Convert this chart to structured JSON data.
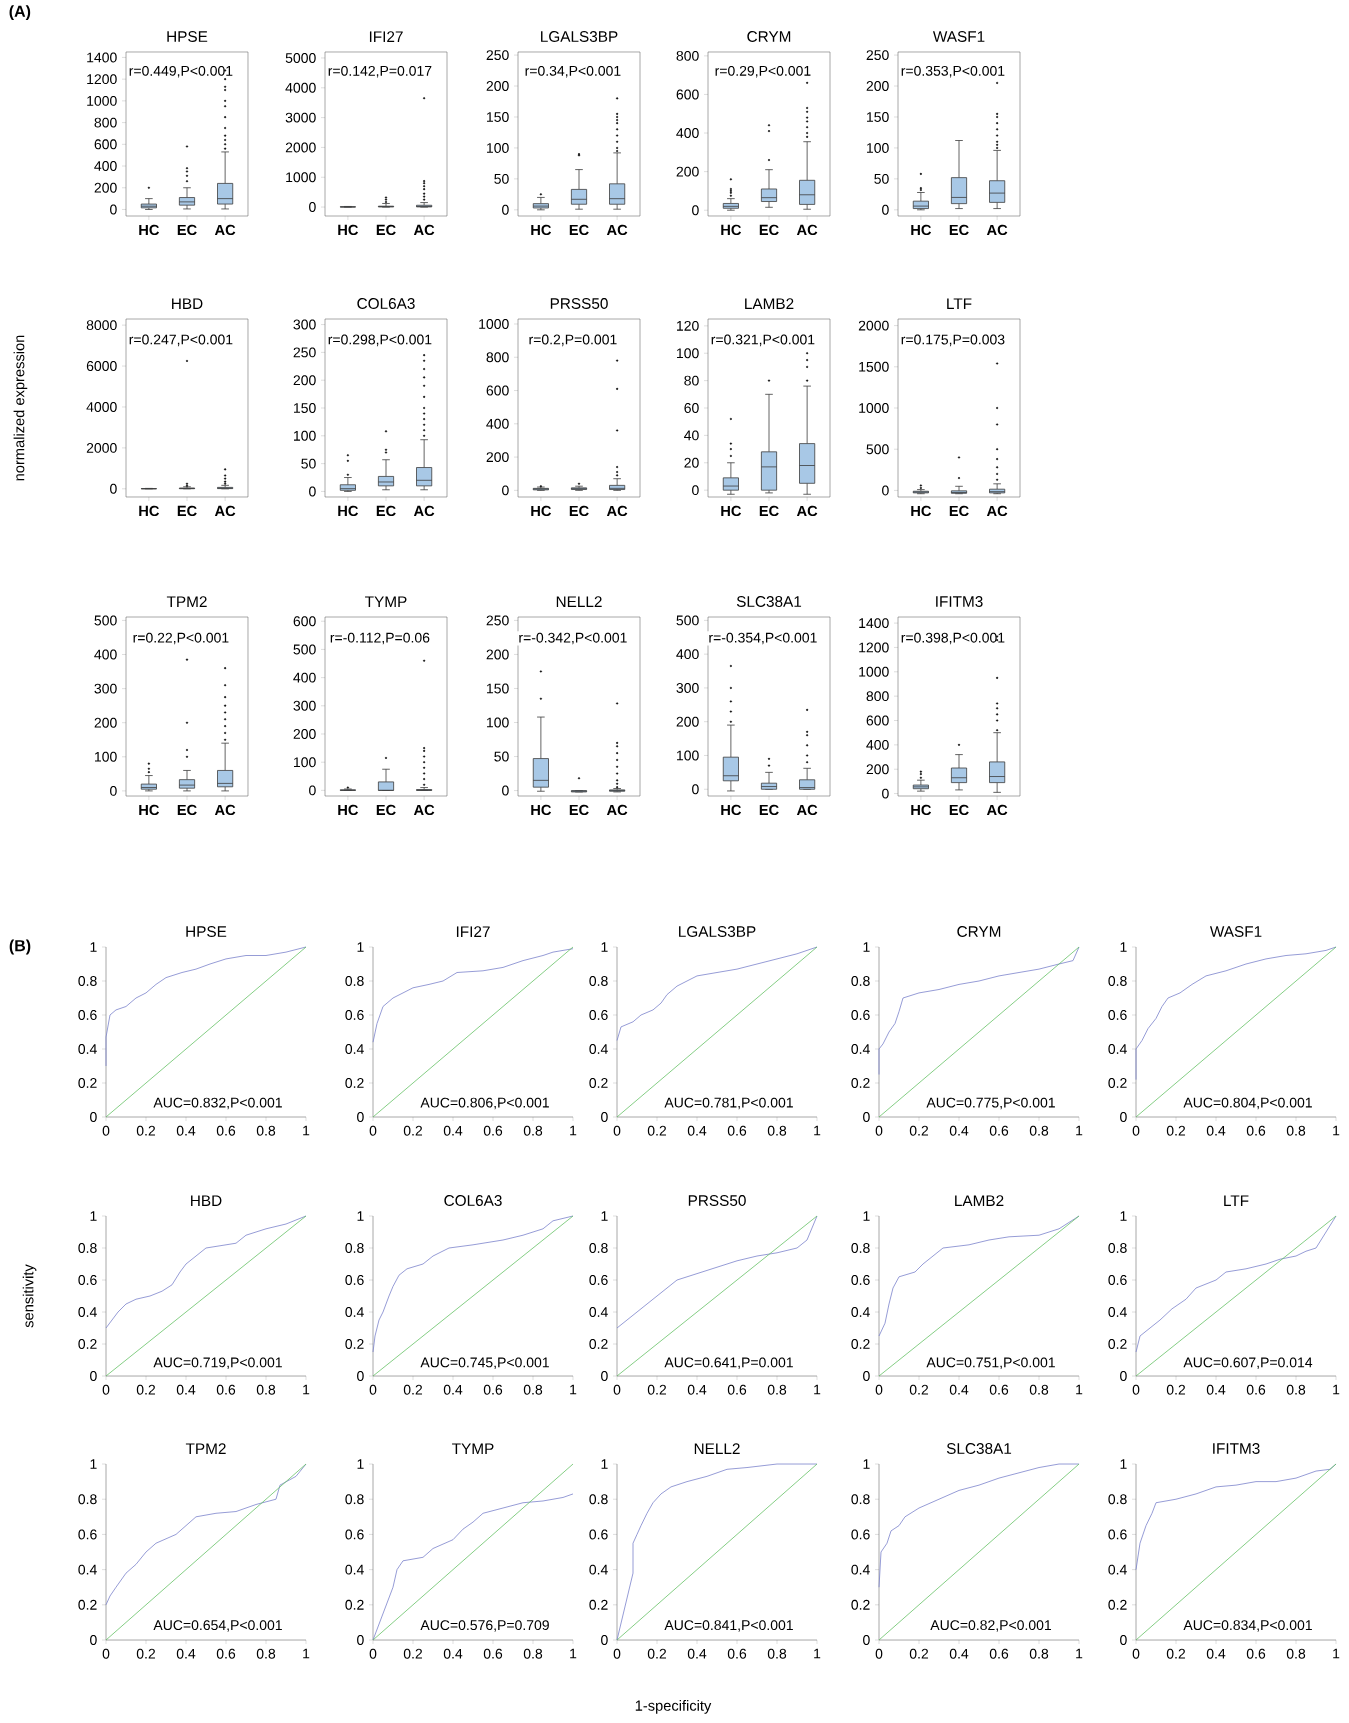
{
  "chart_data": [
    {
      "type": "box",
      "title": "HPSE",
      "categories": [
        "HC",
        "EC",
        "AC"
      ],
      "color": "#a8c8e6",
      "ylim": [
        -60,
        1450
      ],
      "yticks": [
        0,
        200,
        400,
        600,
        800,
        1000,
        1200,
        1400
      ],
      "annotations": [
        "r=0.449,P<0.001",
        "(A)"
      ],
      "boxes": [
        {
          "low": 0,
          "q1": 15,
          "median": 30,
          "q3": 50,
          "high": 100,
          "outliers": [
            200
          ]
        },
        {
          "low": 5,
          "q1": 40,
          "median": 70,
          "q3": 110,
          "high": 200,
          "outliers": [
            260,
            310,
            350,
            380,
            580
          ]
        },
        {
          "low": 5,
          "q1": 50,
          "median": 100,
          "q3": 240,
          "high": 530,
          "outliers": [
            560,
            600,
            640,
            680,
            750,
            850,
            950,
            1000,
            1100,
            1130,
            1200,
            1280
          ]
        }
      ]
    },
    {
      "type": "box",
      "title": "IFI27",
      "categories": [
        "HC",
        "EC",
        "AC"
      ],
      "color": "#a8c8e6",
      "ylim": [
        -300,
        5200
      ],
      "yticks": [
        0,
        1000,
        2000,
        3000,
        4000,
        5000
      ],
      "annotations": [
        "r=0.142,P=0.017"
      ],
      "boxes": [
        {
          "low": 0,
          "q1": 0,
          "median": 5,
          "q3": 10,
          "high": 20
        },
        {
          "low": 0,
          "q1": 5,
          "median": 15,
          "q3": 30,
          "high": 120,
          "outliers": [
            170,
            250,
            320
          ]
        },
        {
          "low": 0,
          "q1": 5,
          "median": 20,
          "q3": 60,
          "high": 150,
          "outliers": [
            250,
            350,
            450,
            600,
            700,
            800,
            870,
            3650
          ]
        }
      ]
    },
    {
      "type": "box",
      "title": "LGALS3BP",
      "categories": [
        "HC",
        "EC",
        "AC"
      ],
      "color": "#a8c8e6",
      "ylim": [
        -10,
        255
      ],
      "yticks": [
        0,
        50,
        100,
        150,
        200,
        250
      ],
      "annotations": [
        "r=0.34,P<0.001"
      ],
      "boxes": [
        {
          "low": 0,
          "q1": 3,
          "median": 6,
          "q3": 10,
          "high": 20,
          "outliers": [
            25
          ]
        },
        {
          "low": 1,
          "q1": 9,
          "median": 17,
          "q3": 33,
          "high": 65,
          "outliers": [
            88,
            90
          ]
        },
        {
          "low": 1,
          "q1": 9,
          "median": 18,
          "q3": 42,
          "high": 92,
          "outliers": [
            95,
            100,
            110,
            120,
            130,
            140,
            145,
            150,
            155,
            180
          ]
        }
      ]
    },
    {
      "type": "box",
      "title": "CRYM",
      "categories": [
        "HC",
        "EC",
        "AC"
      ],
      "color": "#a8c8e6",
      "ylim": [
        -30,
        820
      ],
      "yticks": [
        0,
        200,
        400,
        600,
        800
      ],
      "annotations": [
        "r=0.29,P<0.001"
      ],
      "boxes": [
        {
          "low": 0,
          "q1": 10,
          "median": 20,
          "q3": 35,
          "high": 60,
          "outliers": [
            75,
            90,
            100,
            110,
            160
          ]
        },
        {
          "low": 15,
          "q1": 45,
          "median": 65,
          "q3": 110,
          "high": 210,
          "outliers": [
            260,
            410,
            440
          ]
        },
        {
          "low": 5,
          "q1": 30,
          "median": 80,
          "q3": 155,
          "high": 355,
          "outliers": [
            380,
            400,
            430,
            460,
            480,
            510,
            530,
            660
          ]
        }
      ]
    },
    {
      "type": "box",
      "title": "WASF1",
      "categories": [
        "HC",
        "EC",
        "AC"
      ],
      "color": "#a8c8e6",
      "ylim": [
        -10,
        255
      ],
      "yticks": [
        0,
        50,
        100,
        150,
        200,
        250
      ],
      "annotations": [
        "r=0.353,P<0.001"
      ],
      "boxes": [
        {
          "low": 0,
          "q1": 2,
          "median": 6,
          "q3": 14,
          "high": 28,
          "outliers": [
            32,
            35,
            58
          ]
        },
        {
          "low": 2,
          "q1": 10,
          "median": 20,
          "q3": 52,
          "high": 112
        },
        {
          "low": 2,
          "q1": 12,
          "median": 27,
          "q3": 47,
          "high": 96,
          "outliers": [
            100,
            105,
            110,
            120,
            130,
            140,
            150,
            155,
            205
          ]
        }
      ]
    },
    {
      "type": "box",
      "title": "HBD",
      "categories": [
        "HC",
        "EC",
        "AC"
      ],
      "color": "#a8c8e6",
      "ylim": [
        -400,
        8300
      ],
      "yticks": [
        0,
        2000,
        4000,
        6000,
        8000
      ],
      "ylabel": "normalized expression",
      "annotations": [
        "r=0.247,P<0.001"
      ],
      "boxes": [
        {
          "low": 0,
          "q1": 0,
          "median": 5,
          "q3": 10,
          "high": 20
        },
        {
          "low": 0,
          "q1": 5,
          "median": 15,
          "q3": 40,
          "high": 100,
          "outliers": [
            150,
            250,
            6250
          ]
        },
        {
          "low": 0,
          "q1": 10,
          "median": 30,
          "q3": 70,
          "high": 170,
          "outliers": [
            250,
            350,
            500,
            650,
            950
          ]
        }
      ]
    },
    {
      "type": "box",
      "title": "COL6A3",
      "categories": [
        "HC",
        "EC",
        "AC"
      ],
      "color": "#a8c8e6",
      "ylim": [
        -10,
        310
      ],
      "yticks": [
        0,
        50,
        100,
        150,
        200,
        250,
        300
      ],
      "annotations": [
        "r=0.298,P<0.001"
      ],
      "boxes": [
        {
          "low": 0,
          "q1": 2,
          "median": 5,
          "q3": 12,
          "high": 25,
          "outliers": [
            30,
            55,
            65
          ]
        },
        {
          "low": 3,
          "q1": 10,
          "median": 17,
          "q3": 27,
          "high": 57,
          "outliers": [
            70,
            75,
            108
          ]
        },
        {
          "low": 3,
          "q1": 10,
          "median": 20,
          "q3": 43,
          "high": 93,
          "outliers": [
            100,
            110,
            120,
            130,
            140,
            150,
            170,
            190,
            205,
            220,
            235,
            245
          ]
        }
      ]
    },
    {
      "type": "box",
      "title": "PRSS50",
      "categories": [
        "HC",
        "EC",
        "AC"
      ],
      "color": "#a8c8e6",
      "ylim": [
        -40,
        1030
      ],
      "yticks": [
        0,
        200,
        400,
        600,
        800,
        1000
      ],
      "annotations": [
        "r=0.2,P=0.001"
      ],
      "boxes": [
        {
          "low": 0,
          "q1": 3,
          "median": 8,
          "q3": 12,
          "high": 20,
          "outliers": [
            25
          ]
        },
        {
          "low": 0,
          "q1": 5,
          "median": 10,
          "q3": 15,
          "high": 25,
          "outliers": [
            40
          ]
        },
        {
          "low": 0,
          "q1": 5,
          "median": 12,
          "q3": 30,
          "high": 70,
          "outliers": [
            90,
            110,
            140,
            360,
            610,
            780
          ]
        }
      ]
    },
    {
      "type": "box",
      "title": "LAMB2",
      "categories": [
        "HC",
        "EC",
        "AC"
      ],
      "color": "#a8c8e6",
      "ylim": [
        -5,
        125
      ],
      "yticks": [
        0,
        20,
        40,
        60,
        80,
        100,
        120
      ],
      "annotations": [
        "r=0.321,P<0.001"
      ],
      "boxes": [
        {
          "low": -3,
          "q1": 0,
          "median": 3,
          "q3": 9,
          "high": 20,
          "outliers": [
            25,
            30,
            34,
            52
          ]
        },
        {
          "low": -2,
          "q1": 0,
          "median": 17,
          "q3": 28,
          "high": 70,
          "outliers": [
            80
          ]
        },
        {
          "low": -3,
          "q1": 5,
          "median": 18,
          "q3": 34,
          "high": 76,
          "outliers": [
            80,
            90,
            95,
            100
          ]
        }
      ]
    },
    {
      "type": "box",
      "title": "LTF",
      "categories": [
        "HC",
        "EC",
        "AC"
      ],
      "color": "#a8c8e6",
      "ylim": [
        -80,
        2080
      ],
      "yticks": [
        0,
        500,
        1000,
        1500,
        2000
      ],
      "annotations": [
        "r=0.175,P=0.003"
      ],
      "boxes": [
        {
          "low": -40,
          "q1": -30,
          "median": -20,
          "q3": -10,
          "high": 10,
          "outliers": [
            30,
            60
          ]
        },
        {
          "low": -40,
          "q1": -35,
          "median": -25,
          "q3": -5,
          "high": 50,
          "outliers": [
            150,
            400
          ]
        },
        {
          "low": -40,
          "q1": -30,
          "median": -15,
          "q3": 15,
          "high": 80,
          "outliers": [
            130,
            200,
            280,
            380,
            500,
            800,
            1000,
            1540
          ]
        }
      ]
    },
    {
      "type": "box",
      "title": "TPM2",
      "categories": [
        "HC",
        "EC",
        "AC"
      ],
      "color": "#a8c8e6",
      "ylim": [
        -15,
        510
      ],
      "yticks": [
        0,
        100,
        200,
        300,
        400,
        500
      ],
      "annotations": [
        "r=0.22,P<0.001"
      ],
      "boxes": [
        {
          "low": 0,
          "q1": 5,
          "median": 10,
          "q3": 20,
          "high": 45,
          "outliers": [
            55,
            65,
            80
          ]
        },
        {
          "low": 0,
          "q1": 8,
          "median": 17,
          "q3": 33,
          "high": 60,
          "outliers": [
            100,
            120,
            200,
            385
          ]
        },
        {
          "low": 0,
          "q1": 12,
          "median": 22,
          "q3": 60,
          "high": 140,
          "outliers": [
            150,
            170,
            190,
            210,
            230,
            250,
            275,
            310,
            360
          ]
        }
      ]
    },
    {
      "type": "box",
      "title": "TYMP",
      "categories": [
        "HC",
        "EC",
        "AC"
      ],
      "color": "#a8c8e6",
      "ylim": [
        -20,
        615
      ],
      "yticks": [
        0,
        100,
        200,
        300,
        400,
        500,
        600
      ],
      "annotations": [
        "r=-0.112,P=0.06"
      ],
      "boxes": [
        {
          "low": 0,
          "q1": 0,
          "median": 0,
          "q3": 2,
          "high": 5,
          "outliers": [
            10
          ]
        },
        {
          "low": 0,
          "q1": 0,
          "median": 0,
          "q3": 30,
          "high": 75,
          "outliers": [
            115
          ]
        },
        {
          "low": 0,
          "q1": 0,
          "median": 0,
          "q3": 3,
          "high": 10,
          "outliers": [
            20,
            40,
            60,
            80,
            100,
            120,
            140,
            150,
            460
          ]
        }
      ]
    },
    {
      "type": "box",
      "title": "NELL2",
      "categories": [
        "HC",
        "EC",
        "AC"
      ],
      "color": "#a8c8e6",
      "ylim": [
        -8,
        255
      ],
      "yticks": [
        0,
        50,
        100,
        150,
        200,
        250
      ],
      "annotations": [
        "r=-0.342,P<0.001"
      ],
      "boxes": [
        {
          "low": -1,
          "q1": 5,
          "median": 15,
          "q3": 47,
          "high": 108,
          "outliers": [
            135,
            175
          ]
        },
        {
          "low": -2,
          "q1": -2,
          "median": -1,
          "q3": 0,
          "high": 0,
          "outliers": [
            18
          ]
        },
        {
          "low": -2,
          "q1": -1,
          "median": 0,
          "q3": 1,
          "high": 3,
          "outliers": [
            5,
            10,
            15,
            25,
            35,
            45,
            55,
            65,
            70,
            128
          ]
        }
      ]
    },
    {
      "type": "box",
      "title": "SLC38A1",
      "categories": [
        "HC",
        "EC",
        "AC"
      ],
      "color": "#a8c8e6",
      "ylim": [
        -20,
        510
      ],
      "yticks": [
        0,
        100,
        200,
        300,
        400,
        500
      ],
      "annotations": [
        "r=-0.354,P<0.001"
      ],
      "boxes": [
        {
          "low": -5,
          "q1": 25,
          "median": 40,
          "q3": 95,
          "high": 190,
          "outliers": [
            200,
            230,
            260,
            300,
            365
          ]
        },
        {
          "low": 0,
          "q1": 0,
          "median": 8,
          "q3": 18,
          "high": 50,
          "outliers": [
            70,
            90
          ]
        },
        {
          "low": 0,
          "q1": 0,
          "median": 5,
          "q3": 28,
          "high": 62,
          "outliers": [
            80,
            100,
            130,
            160,
            170,
            235
          ]
        }
      ]
    },
    {
      "type": "box",
      "title": "IFITM3",
      "categories": [
        "HC",
        "EC",
        "AC"
      ],
      "color": "#a8c8e6",
      "ylim": [
        -20,
        1450
      ],
      "yticks": [
        0,
        200,
        400,
        600,
        800,
        1000,
        1200,
        1400
      ],
      "annotations": [
        "r=0.398,P<0.001"
      ],
      "boxes": [
        {
          "low": 20,
          "q1": 40,
          "median": 55,
          "q3": 70,
          "high": 110,
          "outliers": [
            130,
            160,
            180
          ]
        },
        {
          "low": 30,
          "q1": 90,
          "median": 130,
          "q3": 210,
          "high": 320,
          "outliers": [
            400
          ]
        },
        {
          "low": 10,
          "q1": 90,
          "median": 140,
          "q3": 260,
          "high": 500,
          "outliers": [
            520,
            600,
            650,
            700,
            740,
            950,
            1260,
            1290
          ]
        }
      ]
    },
    {
      "type": "line",
      "title": "HPSE",
      "xlim": [
        0,
        1
      ],
      "ylim": [
        0,
        1
      ],
      "xticks": [
        0,
        0.2,
        0.4,
        0.6,
        0.8,
        1
      ],
      "yticks": [
        0,
        0.2,
        0.4,
        0.6,
        0.8,
        1
      ],
      "annotations": [
        "AUC=0.832,P<0.001",
        "(B)"
      ],
      "series": [
        {
          "color": "#7b83cc",
          "x": [
            0,
            0,
            0.02,
            0.05,
            0.1,
            0.15,
            0.2,
            0.25,
            0.3,
            0.38,
            0.45,
            0.52,
            0.6,
            0.7,
            0.8,
            0.9,
            1
          ],
          "values": [
            0.3,
            0.47,
            0.6,
            0.63,
            0.65,
            0.7,
            0.73,
            0.78,
            0.82,
            0.85,
            0.87,
            0.9,
            0.93,
            0.95,
            0.95,
            0.97,
            1
          ]
        },
        {
          "color": "#66c266",
          "x": [
            0,
            1
          ],
          "values": [
            0,
            1
          ]
        }
      ]
    },
    {
      "type": "line",
      "title": "IFI27",
      "xlim": [
        0,
        1
      ],
      "ylim": [
        0,
        1
      ],
      "xticks": [
        0,
        0.2,
        0.4,
        0.6,
        0.8,
        1
      ],
      "yticks": [
        0,
        0.2,
        0.4,
        0.6,
        0.8,
        1
      ],
      "annotations": [
        "AUC=0.806,P<0.001"
      ],
      "series": [
        {
          "color": "#7b83cc",
          "x": [
            0,
            0.02,
            0.05,
            0.1,
            0.15,
            0.2,
            0.28,
            0.35,
            0.42,
            0.55,
            0.65,
            0.75,
            0.85,
            0.9,
            1
          ],
          "values": [
            0.44,
            0.55,
            0.65,
            0.7,
            0.73,
            0.76,
            0.78,
            0.8,
            0.85,
            0.86,
            0.88,
            0.92,
            0.95,
            0.97,
            0.99
          ]
        },
        {
          "color": "#66c266",
          "x": [
            0,
            1
          ],
          "values": [
            0,
            1
          ]
        }
      ]
    },
    {
      "type": "line",
      "title": "LGALS3BP",
      "xlim": [
        0,
        1
      ],
      "ylim": [
        0,
        1
      ],
      "xticks": [
        0,
        0.2,
        0.4,
        0.6,
        0.8,
        1
      ],
      "yticks": [
        0,
        0.2,
        0.4,
        0.6,
        0.8,
        1
      ],
      "annotations": [
        "AUC=0.781,P<0.001"
      ],
      "series": [
        {
          "color": "#7b83cc",
          "x": [
            0,
            0.02,
            0.08,
            0.12,
            0.18,
            0.22,
            0.25,
            0.3,
            0.35,
            0.4,
            0.5,
            0.6,
            0.7,
            0.8,
            0.9,
            1
          ],
          "values": [
            0.45,
            0.53,
            0.56,
            0.6,
            0.63,
            0.67,
            0.72,
            0.77,
            0.8,
            0.83,
            0.85,
            0.87,
            0.9,
            0.93,
            0.96,
            1
          ]
        },
        {
          "color": "#66c266",
          "x": [
            0,
            1
          ],
          "values": [
            0,
            1
          ]
        }
      ]
    },
    {
      "type": "line",
      "title": "CRYM",
      "xlim": [
        0,
        1
      ],
      "ylim": [
        0,
        1
      ],
      "xticks": [
        0,
        0.2,
        0.4,
        0.6,
        0.8,
        1
      ],
      "yticks": [
        0,
        0.2,
        0.4,
        0.6,
        0.8,
        1
      ],
      "annotations": [
        "AUC=0.775,P<0.001"
      ],
      "series": [
        {
          "color": "#7b83cc",
          "x": [
            0,
            0,
            0.02,
            0.05,
            0.08,
            0.1,
            0.12,
            0.2,
            0.3,
            0.4,
            0.5,
            0.6,
            0.7,
            0.8,
            0.9,
            0.97,
            1
          ],
          "values": [
            0.25,
            0.4,
            0.43,
            0.5,
            0.55,
            0.62,
            0.7,
            0.73,
            0.75,
            0.78,
            0.8,
            0.83,
            0.85,
            0.87,
            0.9,
            0.92,
            1
          ]
        },
        {
          "color": "#66c266",
          "x": [
            0,
            1
          ],
          "values": [
            0,
            1
          ]
        }
      ]
    },
    {
      "type": "line",
      "title": "WASF1",
      "xlim": [
        0,
        1
      ],
      "ylim": [
        0,
        1
      ],
      "xticks": [
        0,
        0.2,
        0.4,
        0.6,
        0.8,
        1
      ],
      "yticks": [
        0,
        0.2,
        0.4,
        0.6,
        0.8,
        1
      ],
      "annotations": [
        "AUC=0.804,P<0.001"
      ],
      "series": [
        {
          "color": "#7b83cc",
          "x": [
            0,
            0,
            0.03,
            0.06,
            0.1,
            0.13,
            0.16,
            0.22,
            0.28,
            0.35,
            0.45,
            0.55,
            0.65,
            0.75,
            0.85,
            0.95,
            1
          ],
          "values": [
            0.22,
            0.4,
            0.45,
            0.52,
            0.58,
            0.65,
            0.7,
            0.73,
            0.78,
            0.83,
            0.86,
            0.9,
            0.93,
            0.95,
            0.96,
            0.98,
            1
          ]
        },
        {
          "color": "#66c266",
          "x": [
            0,
            1
          ],
          "values": [
            0,
            1
          ]
        }
      ]
    },
    {
      "type": "line",
      "title": "HBD",
      "xlim": [
        0,
        1
      ],
      "ylim": [
        0,
        1
      ],
      "xticks": [
        0,
        0.2,
        0.4,
        0.6,
        0.8,
        1
      ],
      "yticks": [
        0,
        0.2,
        0.4,
        0.6,
        0.8,
        1
      ],
      "ylabel": "sensitivity",
      "annotations": [
        "AUC=0.719,P<0.001"
      ],
      "series": [
        {
          "color": "#7b83cc",
          "x": [
            0,
            0.03,
            0.06,
            0.1,
            0.15,
            0.22,
            0.28,
            0.33,
            0.37,
            0.4,
            0.45,
            0.5,
            0.6,
            0.65,
            0.7,
            0.8,
            0.9,
            1
          ],
          "values": [
            0.3,
            0.35,
            0.4,
            0.45,
            0.48,
            0.5,
            0.53,
            0.57,
            0.65,
            0.7,
            0.75,
            0.8,
            0.82,
            0.83,
            0.88,
            0.92,
            0.95,
            1
          ]
        },
        {
          "color": "#66c266",
          "x": [
            0,
            1
          ],
          "values": [
            0,
            1
          ]
        }
      ]
    },
    {
      "type": "line",
      "title": "COL6A3",
      "xlim": [
        0,
        1
      ],
      "ylim": [
        0,
        1
      ],
      "xticks": [
        0,
        0.2,
        0.4,
        0.6,
        0.8,
        1
      ],
      "yticks": [
        0,
        0.2,
        0.4,
        0.6,
        0.8,
        1
      ],
      "annotations": [
        "AUC=0.745,P<0.001"
      ],
      "series": [
        {
          "color": "#7b83cc",
          "x": [
            0,
            0.01,
            0.03,
            0.05,
            0.08,
            0.1,
            0.13,
            0.17,
            0.25,
            0.3,
            0.38,
            0.5,
            0.65,
            0.75,
            0.85,
            0.9,
            1
          ],
          "values": [
            0.15,
            0.25,
            0.35,
            0.4,
            0.5,
            0.56,
            0.63,
            0.67,
            0.7,
            0.75,
            0.8,
            0.82,
            0.85,
            0.88,
            0.92,
            0.97,
            1
          ]
        },
        {
          "color": "#66c266",
          "x": [
            0,
            1
          ],
          "values": [
            0,
            1
          ]
        }
      ]
    },
    {
      "type": "line",
      "title": "PRSS50",
      "xlim": [
        0,
        1
      ],
      "ylim": [
        0,
        1
      ],
      "xticks": [
        0,
        0.2,
        0.4,
        0.6,
        0.8,
        1
      ],
      "yticks": [
        0,
        0.2,
        0.4,
        0.6,
        0.8,
        1
      ],
      "annotations": [
        "AUC=0.641,P=0.001"
      ],
      "series": [
        {
          "color": "#7b83cc",
          "x": [
            0,
            0.05,
            0.1,
            0.15,
            0.2,
            0.25,
            0.3,
            0.4,
            0.5,
            0.6,
            0.7,
            0.8,
            0.9,
            0.95,
            1
          ],
          "values": [
            0.3,
            0.35,
            0.4,
            0.45,
            0.5,
            0.55,
            0.6,
            0.64,
            0.68,
            0.72,
            0.75,
            0.77,
            0.8,
            0.85,
            1
          ]
        },
        {
          "color": "#66c266",
          "x": [
            0,
            1
          ],
          "values": [
            0,
            1
          ]
        }
      ]
    },
    {
      "type": "line",
      "title": "LAMB2",
      "xlim": [
        0,
        1
      ],
      "ylim": [
        0,
        1
      ],
      "xticks": [
        0,
        0.2,
        0.4,
        0.6,
        0.8,
        1
      ],
      "yticks": [
        0,
        0.2,
        0.4,
        0.6,
        0.8,
        1
      ],
      "annotations": [
        "AUC=0.751,P<0.001"
      ],
      "series": [
        {
          "color": "#7b83cc",
          "x": [
            0,
            0.03,
            0.05,
            0.07,
            0.1,
            0.18,
            0.22,
            0.27,
            0.32,
            0.45,
            0.55,
            0.65,
            0.8,
            0.9,
            1
          ],
          "values": [
            0.25,
            0.33,
            0.45,
            0.55,
            0.62,
            0.65,
            0.7,
            0.75,
            0.8,
            0.82,
            0.85,
            0.87,
            0.88,
            0.92,
            1
          ]
        },
        {
          "color": "#66c266",
          "x": [
            0,
            1
          ],
          "values": [
            0,
            1
          ]
        }
      ]
    },
    {
      "type": "line",
      "title": "LTF",
      "xlim": [
        0,
        1
      ],
      "ylim": [
        0,
        1
      ],
      "xticks": [
        0,
        0.2,
        0.4,
        0.6,
        0.8,
        1
      ],
      "yticks": [
        0,
        0.2,
        0.4,
        0.6,
        0.8,
        1
      ],
      "annotations": [
        "AUC=0.607,P=0.014"
      ],
      "series": [
        {
          "color": "#7b83cc",
          "x": [
            0,
            0.02,
            0.07,
            0.12,
            0.18,
            0.25,
            0.3,
            0.4,
            0.45,
            0.55,
            0.65,
            0.72,
            0.8,
            0.85,
            0.9,
            1
          ],
          "values": [
            0.15,
            0.25,
            0.3,
            0.35,
            0.42,
            0.48,
            0.55,
            0.6,
            0.65,
            0.67,
            0.7,
            0.73,
            0.75,
            0.78,
            0.8,
            1
          ]
        },
        {
          "color": "#66c266",
          "x": [
            0,
            1
          ],
          "values": [
            0,
            1
          ]
        }
      ]
    },
    {
      "type": "line",
      "title": "TPM2",
      "xlim": [
        0,
        1
      ],
      "ylim": [
        0,
        1
      ],
      "xticks": [
        0,
        0.2,
        0.4,
        0.6,
        0.8,
        1
      ],
      "yticks": [
        0,
        0.2,
        0.4,
        0.6,
        0.8,
        1
      ],
      "annotations": [
        "AUC=0.654,P<0.001"
      ],
      "series": [
        {
          "color": "#7b83cc",
          "x": [
            0,
            0.02,
            0.05,
            0.1,
            0.15,
            0.2,
            0.25,
            0.35,
            0.4,
            0.45,
            0.55,
            0.65,
            0.75,
            0.85,
            0.87,
            0.95,
            1
          ],
          "values": [
            0.2,
            0.25,
            0.3,
            0.38,
            0.43,
            0.5,
            0.55,
            0.6,
            0.65,
            0.7,
            0.72,
            0.73,
            0.77,
            0.8,
            0.88,
            0.93,
            1
          ]
        },
        {
          "color": "#66c266",
          "x": [
            0,
            1
          ],
          "values": [
            0,
            1
          ]
        }
      ]
    },
    {
      "type": "line",
      "title": "TYMP",
      "xlim": [
        0,
        1
      ],
      "ylim": [
        0,
        1
      ],
      "xticks": [
        0,
        0.2,
        0.4,
        0.6,
        0.8,
        1
      ],
      "yticks": [
        0,
        0.2,
        0.4,
        0.6,
        0.8,
        1
      ],
      "annotations": [
        "AUC=0.576,P=0.709"
      ],
      "series": [
        {
          "color": "#7b83cc",
          "x": [
            0,
            0.1,
            0.12,
            0.15,
            0.25,
            0.3,
            0.4,
            0.45,
            0.5,
            0.55,
            0.65,
            0.75,
            0.85,
            0.95,
            1
          ],
          "values": [
            0,
            0.3,
            0.4,
            0.45,
            0.47,
            0.52,
            0.57,
            0.63,
            0.67,
            0.72,
            0.75,
            0.78,
            0.79,
            0.81,
            0.83
          ]
        },
        {
          "color": "#66c266",
          "x": [
            0,
            1
          ],
          "values": [
            0,
            1
          ]
        }
      ]
    },
    {
      "type": "line",
      "title": "NELL2",
      "xlim": [
        0,
        1
      ],
      "ylim": [
        0,
        1
      ],
      "xticks": [
        0,
        0.2,
        0.4,
        0.6,
        0.8,
        1
      ],
      "yticks": [
        0,
        0.2,
        0.4,
        0.6,
        0.8,
        1
      ],
      "xlabel": "1-specificity",
      "annotations": [
        "AUC=0.841,P<0.001"
      ],
      "series": [
        {
          "color": "#7b83cc",
          "x": [
            0,
            0.08,
            0.08,
            0.1,
            0.12,
            0.15,
            0.18,
            0.22,
            0.27,
            0.35,
            0.45,
            0.55,
            0.65,
            0.8,
            1
          ],
          "values": [
            0,
            0.38,
            0.55,
            0.6,
            0.65,
            0.72,
            0.78,
            0.83,
            0.87,
            0.9,
            0.93,
            0.97,
            0.98,
            1,
            1
          ]
        },
        {
          "color": "#66c266",
          "x": [
            0,
            1
          ],
          "values": [
            0,
            1
          ]
        }
      ]
    },
    {
      "type": "line",
      "title": "SLC38A1",
      "xlim": [
        0,
        1
      ],
      "ylim": [
        0,
        1
      ],
      "xticks": [
        0,
        0.2,
        0.4,
        0.6,
        0.8,
        1
      ],
      "yticks": [
        0,
        0.2,
        0.4,
        0.6,
        0.8,
        1
      ],
      "annotations": [
        "AUC=0.82,P<0.001"
      ],
      "series": [
        {
          "color": "#7b83cc",
          "x": [
            0,
            0.01,
            0.04,
            0.06,
            0.1,
            0.13,
            0.2,
            0.3,
            0.4,
            0.5,
            0.6,
            0.7,
            0.8,
            0.9,
            1
          ],
          "values": [
            0.3,
            0.5,
            0.55,
            0.62,
            0.65,
            0.7,
            0.75,
            0.8,
            0.85,
            0.88,
            0.92,
            0.95,
            0.98,
            1,
            1
          ]
        },
        {
          "color": "#66c266",
          "x": [
            0,
            1
          ],
          "values": [
            0,
            1
          ]
        }
      ]
    },
    {
      "type": "line",
      "title": "IFITM3",
      "xlim": [
        0,
        1
      ],
      "ylim": [
        0,
        1
      ],
      "xticks": [
        0,
        0.2,
        0.4,
        0.6,
        0.8,
        1
      ],
      "yticks": [
        0,
        0.2,
        0.4,
        0.6,
        0.8,
        1
      ],
      "annotations": [
        "AUC=0.834,P<0.001"
      ],
      "series": [
        {
          "color": "#7b83cc",
          "x": [
            0,
            0.02,
            0.05,
            0.08,
            0.1,
            0.2,
            0.3,
            0.4,
            0.5,
            0.6,
            0.7,
            0.8,
            0.9,
            0.97,
            1
          ],
          "values": [
            0.4,
            0.55,
            0.65,
            0.72,
            0.78,
            0.8,
            0.83,
            0.87,
            0.88,
            0.9,
            0.9,
            0.92,
            0.96,
            0.97,
            1
          ]
        },
        {
          "color": "#66c266",
          "x": [
            0,
            1
          ],
          "values": [
            0,
            1
          ]
        }
      ]
    }
  ]
}
